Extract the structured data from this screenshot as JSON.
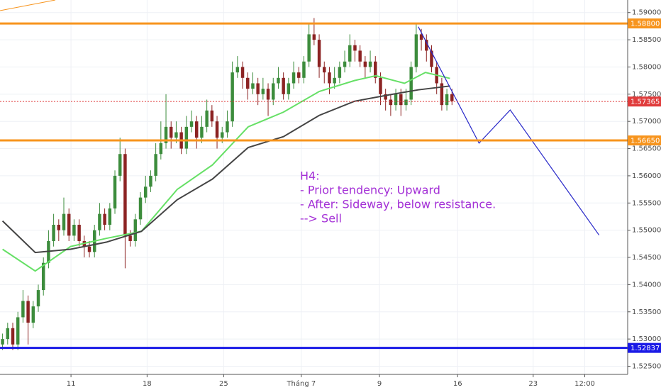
{
  "chart_data": {
    "type": "candlestick",
    "up_color": "#3c8c3c",
    "down_color": "#8c2323",
    "grid": true,
    "x": [
      0,
      1,
      2,
      3,
      4,
      5,
      6,
      7,
      8,
      9,
      10,
      11,
      12,
      13,
      14,
      15,
      16,
      17,
      18,
      19,
      20,
      21,
      22,
      23,
      24,
      25,
      26,
      27,
      28,
      29,
      30,
      31,
      32,
      33,
      34,
      35,
      36,
      37,
      38,
      39,
      40,
      41,
      42,
      43,
      44,
      45,
      46,
      47,
      48,
      49,
      50,
      51,
      52,
      53,
      54,
      55,
      56,
      57,
      58,
      59,
      60,
      61,
      62,
      63,
      64,
      65,
      66,
      67,
      68,
      69,
      70,
      71,
      72,
      73,
      74,
      75,
      76,
      77,
      78,
      79,
      80,
      81,
      82,
      83,
      84,
      85,
      86,
      87,
      88
    ],
    "open": [
      1.529,
      1.53,
      1.532,
      1.529,
      1.534,
      1.537,
      1.533,
      1.536,
      1.539,
      1.544,
      1.548,
      1.551,
      1.55,
      1.553,
      1.549,
      1.551,
      1.548,
      1.547,
      1.546,
      1.55,
      1.553,
      1.551,
      1.554,
      1.56,
      1.564,
      1.549,
      1.548,
      1.552,
      1.556,
      1.558,
      1.56,
      1.564,
      1.566,
      1.569,
      1.567,
      1.568,
      1.565,
      1.569,
      1.57,
      1.567,
      1.569,
      1.572,
      1.57,
      1.567,
      1.568,
      1.57,
      1.579,
      1.58,
      1.578,
      1.576,
      1.577,
      1.575,
      1.576,
      1.574,
      1.577,
      1.578,
      1.575,
      1.577,
      1.579,
      1.578,
      1.581,
      1.586,
      1.585,
      1.58,
      1.579,
      1.577,
      1.578,
      1.58,
      1.581,
      1.584,
      1.583,
      1.581,
      1.58,
      1.581,
      1.578,
      1.575,
      1.574,
      1.573,
      1.575,
      1.573,
      1.574,
      1.58,
      1.586,
      1.585,
      1.583,
      1.58,
      1.577,
      1.573,
      1.575
    ],
    "high": [
      1.531,
      1.533,
      1.533,
      1.535,
      1.539,
      1.538,
      1.537,
      1.54,
      1.545,
      1.55,
      1.553,
      1.552,
      1.556,
      1.554,
      1.552,
      1.552,
      1.549,
      1.548,
      1.551,
      1.555,
      1.554,
      1.555,
      1.561,
      1.567,
      1.565,
      1.55,
      1.553,
      1.557,
      1.56,
      1.561,
      1.566,
      1.57,
      1.575,
      1.57,
      1.57,
      1.569,
      1.571,
      1.572,
      1.571,
      1.571,
      1.574,
      1.573,
      1.571,
      1.569,
      1.572,
      1.581,
      1.582,
      1.581,
      1.579,
      1.579,
      1.578,
      1.578,
      1.577,
      1.578,
      1.58,
      1.579,
      1.578,
      1.581,
      1.58,
      1.582,
      1.588,
      1.589,
      1.586,
      1.581,
      1.58,
      1.58,
      1.581,
      1.583,
      1.586,
      1.585,
      1.584,
      1.582,
      1.583,
      1.582,
      1.579,
      1.576,
      1.575,
      1.576,
      1.576,
      1.576,
      1.581,
      1.588,
      1.587,
      1.586,
      1.584,
      1.581,
      1.578,
      1.576,
      1.576
    ],
    "low": [
      1.528,
      1.529,
      1.528,
      1.528,
      1.533,
      1.529,
      1.532,
      1.535,
      1.538,
      1.543,
      1.547,
      1.548,
      1.549,
      1.548,
      1.548,
      1.547,
      1.545,
      1.545,
      1.545,
      1.549,
      1.55,
      1.55,
      1.553,
      1.559,
      1.543,
      1.547,
      1.547,
      1.551,
      1.555,
      1.557,
      1.559,
      1.563,
      1.565,
      1.565,
      1.566,
      1.564,
      1.564,
      1.568,
      1.565,
      1.566,
      1.568,
      1.569,
      1.565,
      1.566,
      1.567,
      1.569,
      1.578,
      1.576,
      1.574,
      1.575,
      1.573,
      1.574,
      1.571,
      1.573,
      1.576,
      1.574,
      1.574,
      1.576,
      1.577,
      1.577,
      1.58,
      1.584,
      1.578,
      1.577,
      1.575,
      1.576,
      1.577,
      1.579,
      1.58,
      1.581,
      1.58,
      1.578,
      1.579,
      1.577,
      1.573,
      1.572,
      1.571,
      1.572,
      1.571,
      1.572,
      1.573,
      1.579,
      1.583,
      1.581,
      1.579,
      1.575,
      1.572,
      1.572,
      1.573
    ],
    "close": [
      1.53,
      1.532,
      1.529,
      1.534,
      1.537,
      1.533,
      1.536,
      1.539,
      1.544,
      1.548,
      1.551,
      1.55,
      1.553,
      1.549,
      1.551,
      1.548,
      1.547,
      1.546,
      1.55,
      1.553,
      1.551,
      1.554,
      1.56,
      1.564,
      1.549,
      1.548,
      1.552,
      1.556,
      1.558,
      1.56,
      1.564,
      1.566,
      1.569,
      1.567,
      1.568,
      1.565,
      1.569,
      1.57,
      1.567,
      1.569,
      1.572,
      1.57,
      1.567,
      1.568,
      1.57,
      1.579,
      1.58,
      1.578,
      1.576,
      1.577,
      1.575,
      1.576,
      1.574,
      1.577,
      1.578,
      1.575,
      1.577,
      1.579,
      1.578,
      1.581,
      1.586,
      1.585,
      1.58,
      1.579,
      1.577,
      1.578,
      1.58,
      1.581,
      1.584,
      1.583,
      1.581,
      1.58,
      1.581,
      1.578,
      1.575,
      1.574,
      1.573,
      1.575,
      1.573,
      1.574,
      1.58,
      1.586,
      1.585,
      1.583,
      1.58,
      1.577,
      1.573,
      1.575,
      1.5737
    ],
    "lines": [
      {
        "color": "#66e066",
        "x": [
          0,
          6.4,
          13.3,
          20.3,
          27.2,
          34.2,
          41.1,
          48.1,
          55.0,
          62.0,
          68.9,
          73.1,
          78.7,
          82.8,
          87.6
        ],
        "values": [
          1.5465,
          1.5425,
          1.547,
          1.5485,
          1.5498,
          1.5575,
          1.562,
          1.569,
          1.5717,
          1.5755,
          1.5775,
          1.5784,
          1.577,
          1.579,
          1.5779
        ]
      },
      {
        "color": "#444444",
        "x": [
          0,
          6.4,
          13.3,
          20.3,
          27.2,
          34.2,
          41.1,
          48.1,
          55.0,
          62.0,
          68.9,
          75.8,
          81.4,
          87.6
        ],
        "values": [
          1.5517,
          1.5459,
          1.5465,
          1.5478,
          1.5498,
          1.5556,
          1.5594,
          1.5652,
          1.5672,
          1.5711,
          1.5737,
          1.5749,
          1.5758,
          1.5765
        ]
      },
      {
        "color": "#2525c8",
        "x": [
          81.4,
          93.3,
          99.4,
          116.8
        ],
        "values": [
          1.5874,
          1.566,
          1.5721,
          1.5491
        ]
      }
    ],
    "levels": [
      {
        "value": 1.588,
        "label": "1.58800",
        "color": "#f7941d",
        "dashed": false
      },
      {
        "value": 1.5665,
        "label": "1.56650",
        "color": "#f7941d",
        "dashed": false
      },
      {
        "value": 1.52837,
        "label": "1.52837",
        "color": "#1a1ae6",
        "dashed": false
      },
      {
        "value": 1.57365,
        "label": "1.57365",
        "color": "#e03c3c",
        "dashed": true
      }
    ],
    "annotation": [
      "H4:",
      "- Prior tendency: Upward",
      "- After: Sideway, below resistance.",
      "--> Sell"
    ],
    "annotation_color": "#a32fd6",
    "xlim": [
      -0.5,
      122.4
    ],
    "ylim": [
      1.5235,
      1.59231
    ],
    "xticks": [
      {
        "value": 13.4,
        "label": "11"
      },
      {
        "value": 28.3,
        "label": "18"
      },
      {
        "value": 43.3,
        "label": "25"
      },
      {
        "value": 58.5,
        "label": "Tháng 7"
      },
      {
        "value": 73.8,
        "label": "9"
      },
      {
        "value": 89.1,
        "label": "16"
      },
      {
        "value": 103.9,
        "label": "23"
      },
      {
        "value": 114.0,
        "label": "12:00"
      }
    ],
    "yticks": [
      {
        "value": 1.525,
        "label": "1.52500"
      },
      {
        "value": 1.53,
        "label": "1.53000"
      },
      {
        "value": 1.535,
        "label": "1.53500"
      },
      {
        "value": 1.54,
        "label": "1.54000"
      },
      {
        "value": 1.545,
        "label": "1.54500"
      },
      {
        "value": 1.55,
        "label": "1.55000"
      },
      {
        "value": 1.555,
        "label": "1.55500"
      },
      {
        "value": 1.56,
        "label": "1.56000"
      },
      {
        "value": 1.565,
        "label": "1.56500"
      },
      {
        "value": 1.57,
        "label": "1.57000"
      },
      {
        "value": 1.575,
        "label": "1.57500"
      },
      {
        "value": 1.58,
        "label": "1.58000"
      },
      {
        "value": 1.585,
        "label": "1.58500"
      },
      {
        "value": 1.59,
        "label": "1.59000"
      }
    ]
  }
}
